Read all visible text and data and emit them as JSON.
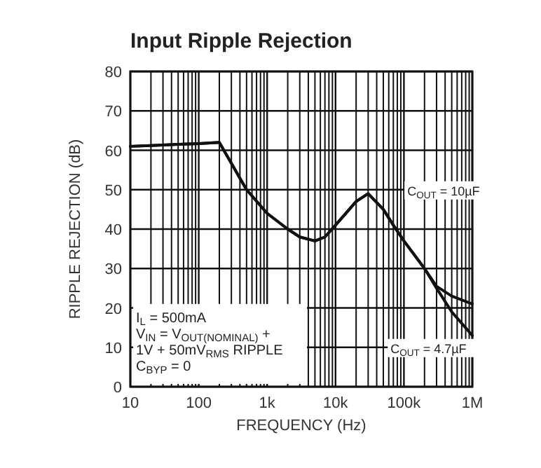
{
  "chart_data": {
    "type": "line",
    "title": "Input Ripple Rejection",
    "xlabel": "FREQUENCY (Hz)",
    "ylabel": "RIPPLE REJECTION (dB)",
    "log": "x",
    "grid": true,
    "legend": false,
    "line_style": "solid",
    "marker": "none",
    "xlim": [
      10,
      1000000
    ],
    "xticks": [
      {
        "value": 10,
        "label": "10"
      },
      {
        "value": 100,
        "label": "100"
      },
      {
        "value": 1000,
        "label": "1k"
      },
      {
        "value": 10000,
        "label": "10k"
      },
      {
        "value": 100000,
        "label": "100k"
      },
      {
        "value": 1000000,
        "label": "1M"
      }
    ],
    "ylim": [
      0,
      80
    ],
    "yticks": [
      0,
      10,
      20,
      30,
      40,
      50,
      60,
      70,
      80
    ],
    "series": [
      {
        "name": "C$_{OUT}$ = 10µF",
        "color": "#111111",
        "x": [
          10,
          20,
          50,
          100,
          200,
          500,
          1000,
          2000,
          3000,
          5000,
          7000,
          10000,
          20000,
          30000,
          50000,
          70000,
          100000,
          200000,
          300000,
          500000,
          1000000
        ],
        "values": [
          61,
          61.2,
          61.5,
          61.7,
          62,
          50,
          44,
          40,
          38,
          37,
          38,
          41,
          47,
          49,
          45,
          41,
          37,
          30,
          25.5,
          23,
          21
        ]
      },
      {
        "name": "C$_{OUT}$ = 4.7µF",
        "color": "#111111",
        "x": [
          10,
          20,
          50,
          100,
          200,
          500,
          1000,
          2000,
          3000,
          5000,
          7000,
          10000,
          20000,
          30000,
          50000,
          70000,
          100000,
          200000,
          300000,
          500000,
          1000000
        ],
        "values": [
          61,
          61.2,
          61.5,
          61.7,
          62,
          50,
          44,
          40,
          38,
          37,
          38,
          41,
          47,
          49,
          45,
          41,
          37,
          30,
          25,
          19,
          13
        ]
      }
    ],
    "annotations": [
      "I$_{L}$ = 500mA",
      "V$_{IN}$ = V$_{OUT(NOMINAL)}$ +",
      "1V + 50mV$_{RMS}$ RIPPLE",
      "C$_{BYP}$ = 0"
    ]
  }
}
